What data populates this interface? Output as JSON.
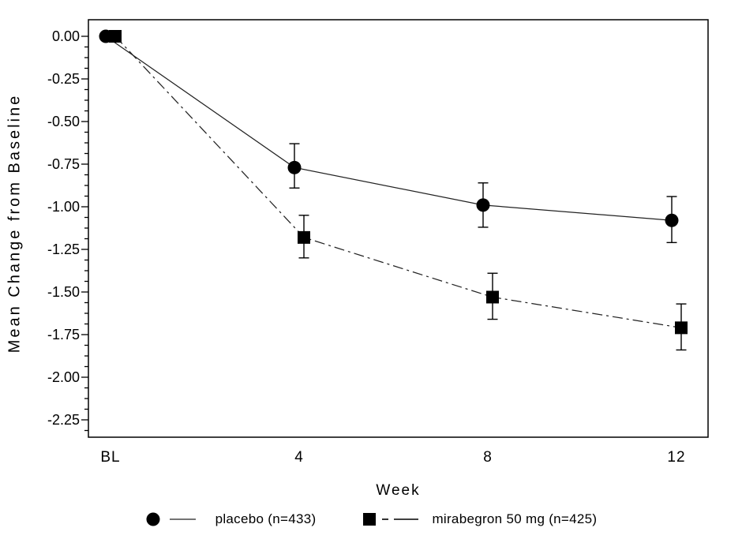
{
  "colors": {
    "foreground": "#000000",
    "background": "#ffffff",
    "series_line": "#222222"
  },
  "chart_data": {
    "type": "line",
    "title": "",
    "xlabel": "Week",
    "ylabel": "Mean Change from Baseline",
    "x_tick_labels": [
      "BL",
      "4",
      "8",
      "12"
    ],
    "x_values": [
      0,
      4,
      8,
      12
    ],
    "y_tick_labels": [
      "0.00",
      "-0.25",
      "-0.50",
      "-0.75",
      "-1.00",
      "-1.25",
      "-1.50",
      "-1.75",
      "-2.00",
      "-2.25"
    ],
    "y_axis": {
      "major_step": 0.25,
      "minor_step": 0.0625
    },
    "ylim": [
      -2.39,
      0.1
    ],
    "grid": false,
    "legend_position": "bottom",
    "error_bars": true,
    "series": [
      {
        "name": "placebo (n=433)",
        "marker": "circle",
        "line_style": "solid",
        "color": "#000000",
        "values": [
          0.0,
          -0.77,
          -0.99,
          -1.08
        ],
        "error_upper": [
          0.0,
          -0.63,
          -0.86,
          -0.94
        ],
        "error_lower": [
          0.0,
          -0.89,
          -1.12,
          -1.21
        ]
      },
      {
        "name": "mirabegron 50 mg (n=425)",
        "marker": "square",
        "line_style": "dash-dot",
        "color": "#000000",
        "values": [
          0.0,
          -1.18,
          -1.53,
          -1.71
        ],
        "error_upper": [
          0.0,
          -1.05,
          -1.39,
          -1.57
        ],
        "error_lower": [
          0.0,
          -1.3,
          -1.66,
          -1.84
        ]
      }
    ]
  }
}
